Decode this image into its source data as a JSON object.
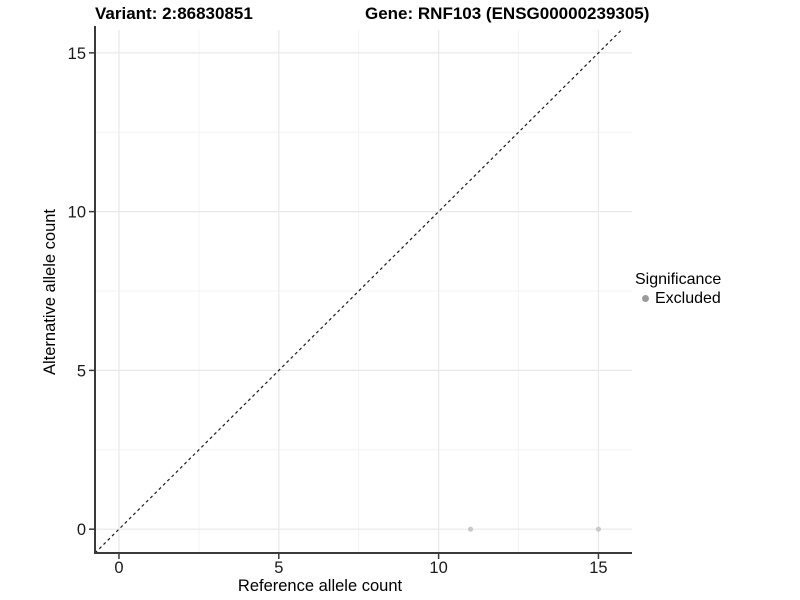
{
  "chart_data": {
    "type": "scatter",
    "title_left": "Variant: 2:86830851",
    "title_right": "Gene: RNF103 (ENSG00000239305)",
    "xlabel": "Reference allele count",
    "ylabel": "Alternative allele count",
    "xlim": [
      -0.75,
      16.05
    ],
    "ylim": [
      -0.75,
      15.72
    ],
    "x_major_ticks": [
      0,
      5,
      10,
      15
    ],
    "y_major_ticks": [
      0,
      5,
      10,
      15
    ],
    "x_minor_gridlines": [
      2.5,
      7.5,
      12.5
    ],
    "y_minor_gridlines": [
      2.5,
      7.5,
      12.5
    ],
    "grid": "major+minor",
    "legend_position": "right",
    "series": [
      {
        "name": "Excluded",
        "color": "#c9c9c9",
        "points": [
          {
            "x": 11,
            "y": 0
          },
          {
            "x": 15,
            "y": 0
          }
        ]
      }
    ],
    "reference_line": {
      "type": "identity y=x",
      "style": "dashed",
      "color": "#1a1a1a"
    }
  },
  "legend": {
    "title": "Significance",
    "items": [
      {
        "label": "Excluded",
        "color": "#9b9b9b",
        "marker": "circle-icon"
      }
    ]
  },
  "colors": {
    "background": "#ffffff",
    "axis_line": "#3a3a3a",
    "grid_major": "#e8e8e8",
    "grid_minor": "#f3f3f3",
    "tick_text": "#1a1a1a",
    "title_text": "#000000"
  }
}
